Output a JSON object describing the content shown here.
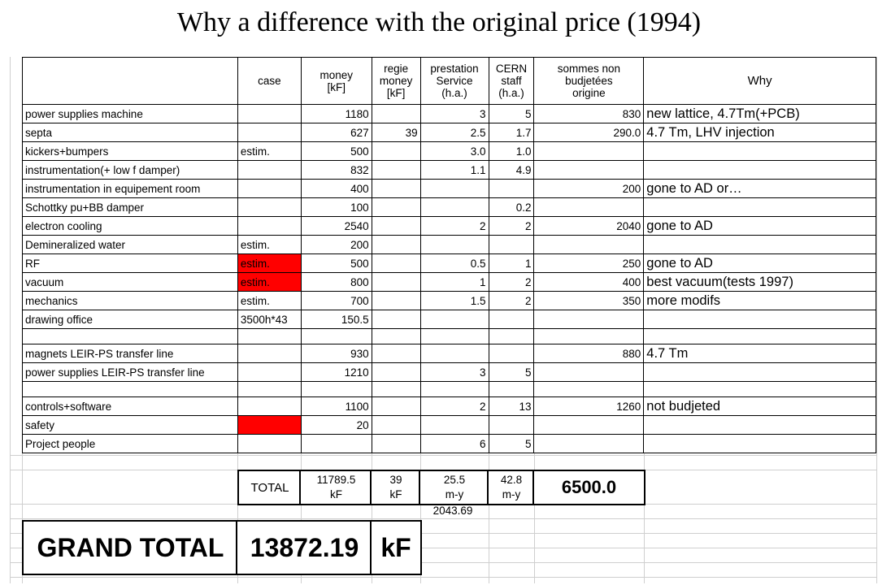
{
  "title": "Why a difference with the original price (1994)",
  "headers": {
    "case": "case",
    "money": [
      "money",
      "[kF]"
    ],
    "regie": [
      "regie",
      "money",
      "[kF]"
    ],
    "prestation": [
      "prestation",
      "Service",
      "(h.a.)"
    ],
    "cern": [
      "CERN",
      "staff",
      "(h.a.)"
    ],
    "sommes": [
      "sommes non",
      "budjetées",
      "origine"
    ],
    "why": "Why"
  },
  "rows": [
    {
      "item": "power supplies machine",
      "case": "",
      "money": "1180",
      "regie": "",
      "prest": "3",
      "cern": "5",
      "sommes": "830",
      "why": "new lattice, 4.7Tm(+PCB)"
    },
    {
      "item": "septa",
      "case": "",
      "money": "627",
      "regie": "39",
      "prest": "2.5",
      "cern": "1.7",
      "sommes": "290.0",
      "why": "4.7 Tm, LHV injection"
    },
    {
      "item": "kickers+bumpers",
      "case": "estim.",
      "money": "500",
      "regie": "",
      "prest": "3.0",
      "cern": "1.0",
      "sommes": "",
      "why": ""
    },
    {
      "item": "instrumentation(+ low f damper)",
      "case": "",
      "money": "832",
      "regie": "",
      "prest": "1.1",
      "cern": "4.9",
      "sommes": "",
      "why": ""
    },
    {
      "item": "instrumentation in equipement room",
      "case": "",
      "money": "400",
      "regie": "",
      "prest": "",
      "cern": "",
      "sommes": "200",
      "why": "gone to AD or…"
    },
    {
      "item": "Schottky pu+BB damper",
      "case": "",
      "money": "100",
      "regie": "",
      "prest": "",
      "cern": "0.2",
      "sommes": "",
      "why": ""
    },
    {
      "item": "electron cooling",
      "case": "",
      "money": "2540",
      "regie": "",
      "prest": "2",
      "cern": "2",
      "sommes": "2040",
      "why": "gone to AD"
    },
    {
      "item": "Demineralized water",
      "case": "estim.",
      "money": "200",
      "regie": "",
      "prest": "",
      "cern": "",
      "sommes": "",
      "why": ""
    },
    {
      "item": "RF",
      "case": "estim.",
      "red": true,
      "money": "500",
      "regie": "",
      "prest": "0.5",
      "cern": "1",
      "sommes": "250",
      "why": "gone to AD"
    },
    {
      "item": "vacuum",
      "case": "estim.",
      "red": true,
      "money": "800",
      "regie": "",
      "prest": "1",
      "cern": "2",
      "sommes": "400",
      "why": "best vacuum(tests 1997)"
    },
    {
      "item": "mechanics",
      "case": "estim.",
      "money": "700",
      "regie": "",
      "prest": "1.5",
      "cern": "2",
      "sommes": "350",
      "why": "more modifs"
    },
    {
      "item": "drawing office",
      "case": "3500h*43",
      "money": "150.5",
      "regie": "",
      "prest": "",
      "cern": "",
      "sommes": "",
      "why": ""
    },
    {
      "item": "",
      "case": "",
      "money": "",
      "regie": "",
      "prest": "",
      "cern": "",
      "sommes": "",
      "why": ""
    },
    {
      "item": "magnets LEIR-PS transfer line",
      "case": "",
      "money": "930",
      "regie": "",
      "prest": "",
      "cern": "",
      "sommes": "880",
      "why": "4.7 Tm"
    },
    {
      "item": "power supplies LEIR-PS transfer line",
      "case": "",
      "money": "1210",
      "regie": "",
      "prest": "3",
      "cern": "5",
      "sommes": "",
      "why": ""
    },
    {
      "item": "",
      "case": "",
      "money": "",
      "regie": "",
      "prest": "",
      "cern": "",
      "sommes": "",
      "why": ""
    },
    {
      "item": "controls+software",
      "case": "",
      "money": "1100",
      "regie": "",
      "prest": "2",
      "cern": "13",
      "sommes": "1260",
      "why": "not budjeted"
    },
    {
      "item": "safety",
      "case": "",
      "red": true,
      "money": "20",
      "regie": "",
      "prest": "",
      "cern": "",
      "sommes": "",
      "why": ""
    },
    {
      "item": "Project people",
      "case": "",
      "money": "",
      "regie": "",
      "prest": "6",
      "cern": "5",
      "sommes": "",
      "why": ""
    }
  ],
  "total": {
    "label": "TOTAL",
    "money": "11789.5",
    "money_unit": "kF",
    "regie": "39",
    "regie_unit": "kF",
    "prest": "25.5",
    "prest_unit": "m-y",
    "cern": "42.8",
    "cern_unit": "m-y",
    "sommes": "6500.0",
    "sub_value": "2043.69"
  },
  "grand_total": {
    "label": "GRAND TOTAL",
    "value": "13872.19",
    "unit": "kF"
  },
  "colors": {
    "highlight": "#ff0000",
    "grid": "#cfcfcf"
  }
}
